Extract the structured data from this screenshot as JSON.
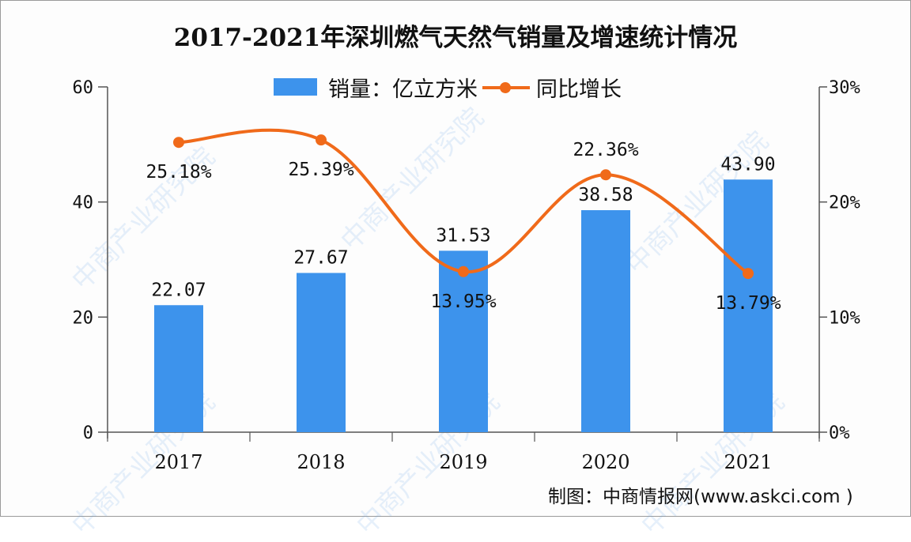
{
  "title": "2017-2021年深圳燃气天然气销量及增速统计情况",
  "legend": {
    "bar_label": "销量：亿立方米",
    "line_label": "同比增长"
  },
  "source": "制图：中商情报网(www.askci.com )",
  "watermark": "中商产业研究院",
  "colors": {
    "bar": "#3d93ec",
    "line": "#f06a1a",
    "axis": "#555555",
    "text": "#111111"
  },
  "axes": {
    "left_ticks": [
      "0",
      "20",
      "40",
      "60"
    ],
    "right_ticks": [
      "0%",
      "10%",
      "20%",
      "30%"
    ],
    "x_ticks": [
      "2017",
      "2018",
      "2019",
      "2020",
      "2021"
    ]
  },
  "chart_data": {
    "type": "bar",
    "title": "2017-2021年深圳燃气天然气销量及增速统计情况",
    "categories": [
      "2017",
      "2018",
      "2019",
      "2020",
      "2021"
    ],
    "series": [
      {
        "name": "销量：亿立方米",
        "type": "bar",
        "axis": "left",
        "values": [
          22.07,
          27.67,
          31.53,
          38.58,
          43.9
        ],
        "labels": [
          "22.07",
          "27.67",
          "31.53",
          "38.58",
          "43.90"
        ]
      },
      {
        "name": "同比增长",
        "type": "line",
        "axis": "right",
        "values": [
          25.18,
          25.39,
          13.95,
          22.36,
          13.79
        ],
        "labels": [
          "25.18%",
          "25.39%",
          "13.95%",
          "22.36%",
          "13.79%"
        ]
      }
    ],
    "xlabel": "",
    "ylabel": "",
    "ylim": [
      0,
      60
    ],
    "y2lim": [
      0,
      30
    ],
    "y2_unit": "%",
    "grid": false,
    "legend_position": "top"
  }
}
